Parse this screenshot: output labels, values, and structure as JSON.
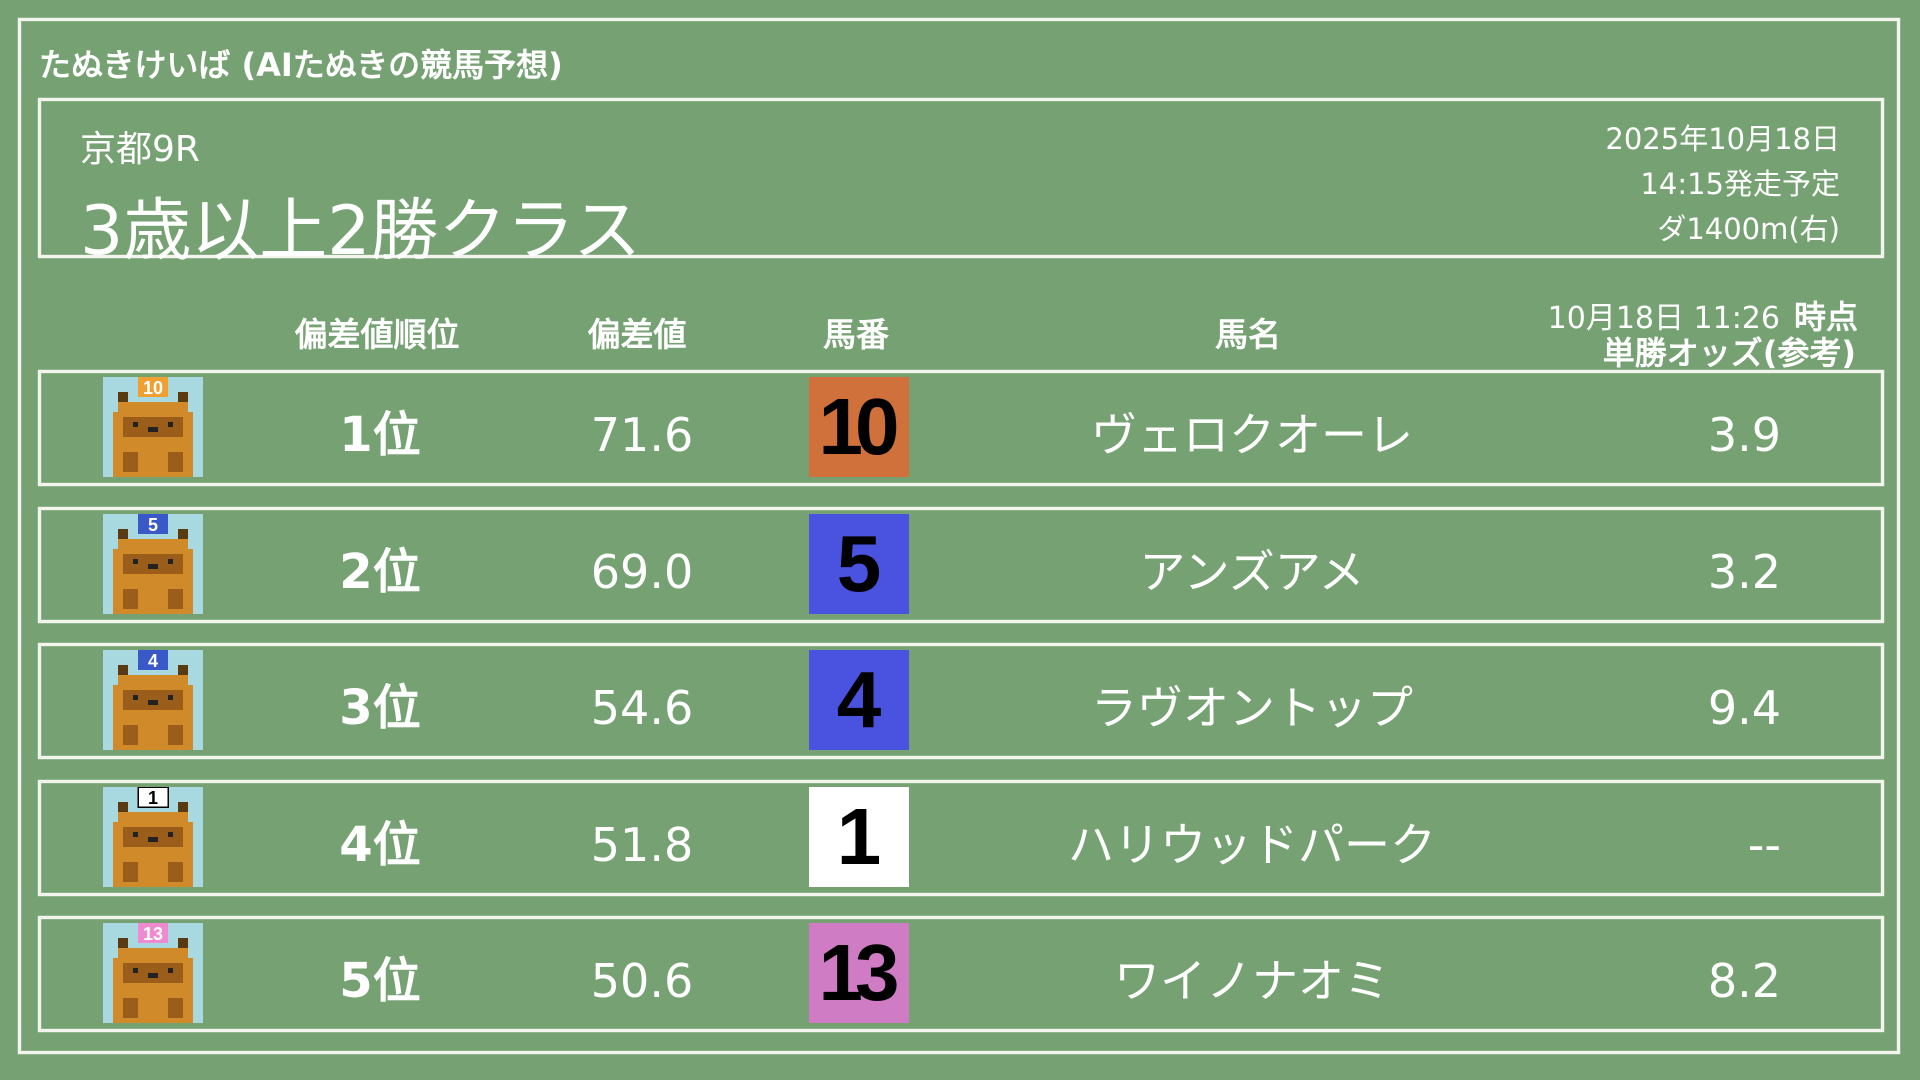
{
  "app_title": "たぬきけいば (AIたぬきの競馬予想)",
  "race": {
    "venue_round": "京都9R",
    "name": "3歳以上2勝クラス",
    "date": "2025年10月18日",
    "start_time": "14:15発走予定",
    "course": "ダ1400m(右)"
  },
  "columns": {
    "rank": "偏差値順位",
    "score": "偏差値",
    "number": "馬番",
    "name": "馬名",
    "odds_time": "10月18日 11:26",
    "odds_time_suffix": "時点",
    "odds": "単勝オッズ(参考)"
  },
  "rows": [
    {
      "rank": "1位",
      "score": "71.6",
      "number": "10",
      "name": "ヴェロクオーレ",
      "odds": "3.9",
      "box_color": "#d0703a",
      "cap_color": "#f0a030",
      "cap_text_color": "#ffffff"
    },
    {
      "rank": "2位",
      "score": "69.0",
      "number": "5",
      "name": "アンズアメ",
      "odds": "3.2",
      "box_color": "#4a52e0",
      "cap_color": "#3a58c8",
      "cap_text_color": "#ffffff"
    },
    {
      "rank": "3位",
      "score": "54.6",
      "number": "4",
      "name": "ラヴオントップ",
      "odds": "9.4",
      "box_color": "#4a52e0",
      "cap_color": "#3a58c8",
      "cap_text_color": "#ffffff"
    },
    {
      "rank": "4位",
      "score": "51.8",
      "number": "1",
      "name": "ハリウッドパーク",
      "odds": "--",
      "box_color": "#ffffff",
      "cap_color": "#ffffff",
      "cap_text_color": "#000000"
    },
    {
      "rank": "5位",
      "score": "50.6",
      "number": "13",
      "name": "ワイノナオミ",
      "odds": "8.2",
      "box_color": "#d07cc4",
      "cap_color": "#f08ad0",
      "cap_text_color": "#ffffff"
    }
  ],
  "colors": {
    "background": "#76a273",
    "chalk": "#f4f4ee",
    "avatar_bg": "#a8d8e0",
    "tanuki_body": "#d08a2a",
    "tanuki_mask": "#9a5e1a"
  }
}
